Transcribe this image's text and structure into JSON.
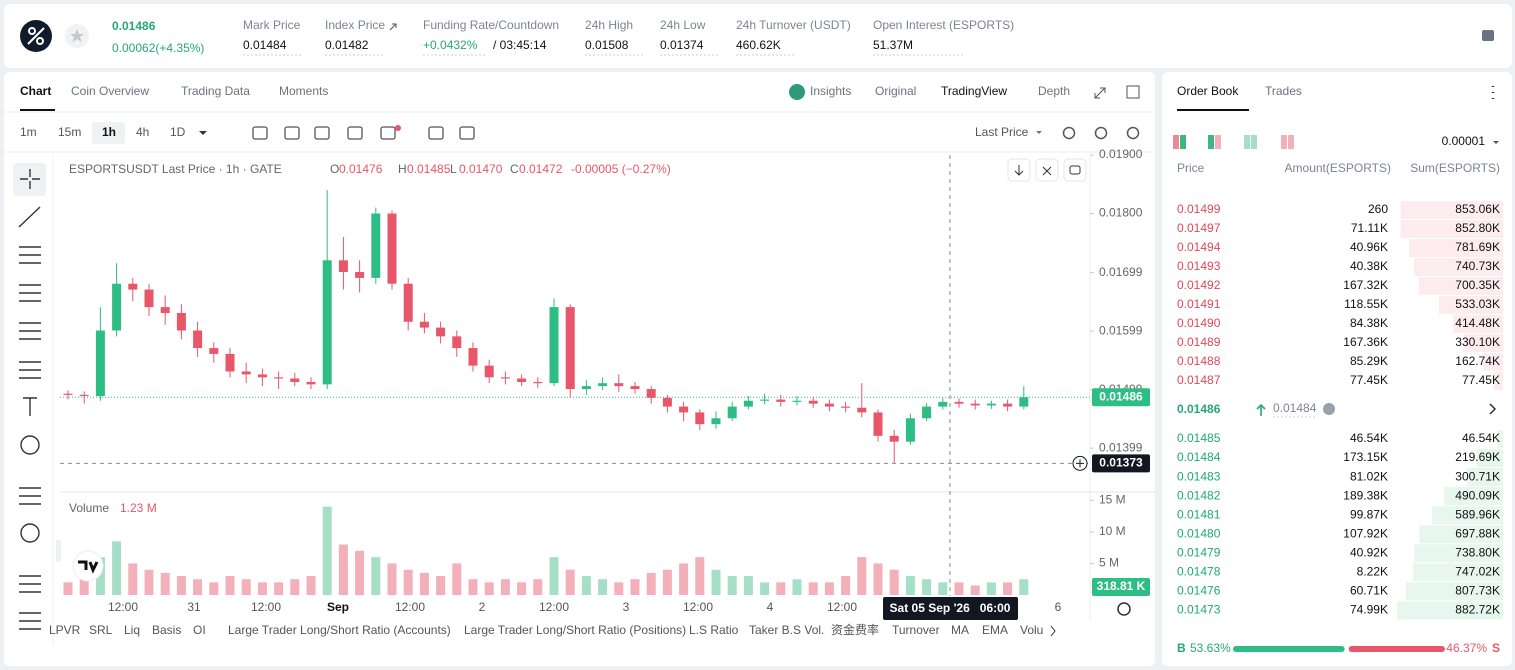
{
  "header": {
    "price": "0.01486",
    "change": "0.00062(+4.35%)",
    "stats": [
      {
        "label": "Mark Price",
        "value": "0.01484"
      },
      {
        "label": "Index Price",
        "value": "0.01482"
      },
      {
        "label": "Funding Rate/Countdown",
        "value": "+0.0432%",
        "extra": "/ 03:45:14"
      },
      {
        "label": "24h High",
        "value": "0.01508"
      },
      {
        "label": "24h Low",
        "value": "0.01374"
      },
      {
        "label": "24h Turnover (USDT)",
        "value": "460.62K"
      },
      {
        "label": "Open Interest (ESPORTS)",
        "value": "51.37M"
      }
    ]
  },
  "tabs": [
    "Chart",
    "Coin Overview",
    "Trading Data",
    "Moments"
  ],
  "view_tabs": [
    "Insights",
    "Original",
    "TradingView",
    "Depth"
  ],
  "intervals": [
    "1m",
    "15m",
    "1h",
    "4h",
    "1D"
  ],
  "price_source": "Last Price",
  "chart_data": {
    "type": "candlestick",
    "title": "ESPORTSUSDT Last Price · 1h · GATE",
    "ohlc_legend": [
      {
        "key": "O",
        "value": "0.01476"
      },
      {
        "key": "H",
        "value": "0.01485"
      },
      {
        "key": "L",
        "value": "0.01470"
      },
      {
        "key": "C",
        "value": "0.01472"
      }
    ],
    "legend_change": "-0.00005 (−0.27%)",
    "up_color": "#2ebd85",
    "down_color": "#e8566a",
    "open": [
      0.01492,
      0.0149,
      0.01488,
      0.016,
      0.0168,
      0.0167,
      0.0164,
      0.0163,
      0.016,
      0.0157,
      0.0156,
      0.0153,
      0.01525,
      0.0152,
      0.01518,
      0.01512,
      0.01508,
      0.0172,
      0.017,
      0.0169,
      0.018,
      0.0168,
      0.01615,
      0.01605,
      0.0159,
      0.0157,
      0.0154,
      0.0152,
      0.01518,
      0.01512,
      0.0151,
      0.0164,
      0.015,
      0.01505,
      0.0151,
      0.01505,
      0.015,
      0.01485,
      0.0147,
      0.0146,
      0.0144,
      0.0145,
      0.0147,
      0.0148,
      0.01482,
      0.01478,
      0.0148,
      0.01475,
      0.0147,
      0.01468,
      0.0146,
      0.0142,
      0.0141,
      0.0145,
      0.0147,
      0.01478,
      0.01475,
      0.01472,
      0.01475,
      0.0147
    ],
    "high": [
      0.01498,
      0.01496,
      0.0164,
      0.01715,
      0.0169,
      0.0168,
      0.0166,
      0.01645,
      0.01615,
      0.0158,
      0.0157,
      0.01545,
      0.01535,
      0.0153,
      0.01528,
      0.0152,
      0.0184,
      0.0176,
      0.0172,
      0.0181,
      0.01805,
      0.0169,
      0.0163,
      0.01615,
      0.016,
      0.0158,
      0.0155,
      0.0153,
      0.01525,
      0.0152,
      0.01655,
      0.01645,
      0.01515,
      0.0152,
      0.01525,
      0.01512,
      0.01505,
      0.0149,
      0.01478,
      0.01465,
      0.01462,
      0.01478,
      0.01488,
      0.01492,
      0.0149,
      0.01488,
      0.01486,
      0.01482,
      0.01478,
      0.0151,
      0.01465,
      0.0143,
      0.01458,
      0.01476,
      0.01485,
      0.01484,
      0.01482,
      0.0148,
      0.01482,
      0.01505
    ],
    "low": [
      0.01482,
      0.01475,
      0.0148,
      0.0159,
      0.0165,
      0.01625,
      0.0161,
      0.01585,
      0.01555,
      0.01545,
      0.0152,
      0.0151,
      0.01505,
      0.015,
      0.01505,
      0.015,
      0.015,
      0.0167,
      0.01665,
      0.0168,
      0.0167,
      0.016,
      0.01595,
      0.01578,
      0.01555,
      0.0153,
      0.0151,
      0.01508,
      0.01505,
      0.01502,
      0.01505,
      0.01485,
      0.0149,
      0.01498,
      0.01495,
      0.01492,
      0.01475,
      0.0146,
      0.01445,
      0.0143,
      0.01432,
      0.01445,
      0.01465,
      0.01474,
      0.0147,
      0.01472,
      0.01468,
      0.01462,
      0.0146,
      0.01452,
      0.0141,
      0.01373,
      0.01405,
      0.01445,
      0.01465,
      0.01468,
      0.01465,
      0.01466,
      0.01462,
      0.01465
    ],
    "close": [
      0.0149,
      0.01488,
      0.016,
      0.0168,
      0.0167,
      0.0164,
      0.0163,
      0.016,
      0.0157,
      0.0156,
      0.0153,
      0.01525,
      0.0152,
      0.01518,
      0.01512,
      0.01508,
      0.0172,
      0.017,
      0.0169,
      0.018,
      0.0168,
      0.01615,
      0.01605,
      0.0159,
      0.0157,
      0.0154,
      0.0152,
      0.01518,
      0.01512,
      0.0151,
      0.0164,
      0.015,
      0.01505,
      0.0151,
      0.01505,
      0.015,
      0.01485,
      0.0147,
      0.0146,
      0.0144,
      0.0145,
      0.0147,
      0.0148,
      0.01482,
      0.01478,
      0.0148,
      0.01475,
      0.0147,
      0.01468,
      0.0146,
      0.0142,
      0.0141,
      0.0145,
      0.0147,
      0.01478,
      0.01475,
      0.01472,
      0.01475,
      0.0147,
      0.01486
    ],
    "ylim": [
      0.01324,
      0.019
    ],
    "yticks": [
      {
        "value": 0.019,
        "label": "0.01900"
      },
      {
        "value": 0.018,
        "label": "0.01800"
      },
      {
        "value": 0.01699,
        "label": "0.01699"
      },
      {
        "value": 0.01599,
        "label": "0.01599"
      },
      {
        "value": 0.01499,
        "label": "0.01499"
      },
      {
        "value": 0.01399,
        "label": "0.01399"
      }
    ],
    "last_price": {
      "value": 0.01486,
      "label": "0.01486"
    },
    "crosshair_price": {
      "value": 0.01373,
      "label": "0.01373"
    },
    "crosshair_time": "Sat 05 Sep '26   06:00",
    "x_labels": [
      "12:00",
      "31",
      "12:00",
      "Sep",
      "12:00",
      "2",
      "12:00",
      "3",
      "12:00",
      "4",
      "12:00",
      "6"
    ],
    "volume_title": "Volume",
    "volume_value": "1.23 M",
    "volume_last": "318.81 K",
    "volume": [
      2000000,
      3000000,
      6000000,
      8500000,
      5000000,
      4000000,
      3500000,
      3000000,
      2500000,
      2000000,
      3000000,
      2500000,
      2000000,
      2000000,
      2500000,
      3000000,
      14000000,
      8000000,
      7000000,
      6000000,
      5000000,
      4000000,
      3500000,
      3000000,
      5000000,
      2500000,
      2000000,
      2500000,
      2000000,
      2500000,
      6000000,
      4000000,
      3000000,
      2500000,
      2000000,
      2500000,
      3500000,
      4000000,
      5000000,
      6000000,
      4000000,
      3000000,
      3000000,
      2000000,
      2000000,
      2500000,
      2000000,
      2000000,
      3000000,
      6000000,
      5000000,
      4000000,
      3000000,
      2500000,
      2000000,
      2000000,
      1500000,
      2000000,
      2000000,
      2500000
    ],
    "volume_ylim": [
      0,
      16000000
    ],
    "volume_ticks": [
      {
        "value": 15000000,
        "label": "15 M"
      },
      {
        "value": 10000000,
        "label": "10 M"
      },
      {
        "value": 5000000,
        "label": "5 M"
      }
    ]
  },
  "indicators": [
    "LPVR",
    "SRL",
    "Liq",
    "Basis",
    "OI",
    "Large Trader Long/Short Ratio (Accounts)",
    "Large Trader Long/Short Ratio (Positions)",
    "L.S Ratio",
    "Taker B.S Vol.",
    "资金费率",
    "Turnover",
    "MA",
    "EMA",
    "Volu"
  ],
  "order_book": {
    "tabs": [
      "Order Book",
      "Trades"
    ],
    "precision": "0.00001",
    "headers": [
      "Price",
      "Amount(ESPORTS)",
      "Sum(ESPORTS)"
    ],
    "asks": [
      {
        "price": "0.01499",
        "amount": "260",
        "sum": 853060,
        "sum_label": "853.06K"
      },
      {
        "price": "0.01497",
        "amount": "71.11K",
        "sum": 852800,
        "sum_label": "852.80K"
      },
      {
        "price": "0.01494",
        "amount": "40.96K",
        "sum": 781690,
        "sum_label": "781.69K"
      },
      {
        "price": "0.01493",
        "amount": "40.38K",
        "sum": 740730,
        "sum_label": "740.73K"
      },
      {
        "price": "0.01492",
        "amount": "167.32K",
        "sum": 700350,
        "sum_label": "700.35K"
      },
      {
        "price": "0.01491",
        "amount": "118.55K",
        "sum": 533030,
        "sum_label": "533.03K"
      },
      {
        "price": "0.01490",
        "amount": "84.38K",
        "sum": 414480,
        "sum_label": "414.48K"
      },
      {
        "price": "0.01489",
        "amount": "167.36K",
        "sum": 330100,
        "sum_label": "330.10K"
      },
      {
        "price": "0.01488",
        "amount": "85.29K",
        "sum": 162740,
        "sum_label": "162.74K"
      },
      {
        "price": "0.01487",
        "amount": "77.45K",
        "sum": 77450,
        "sum_label": "77.45K"
      }
    ],
    "mid_price": "0.01486",
    "mid_mark": "0.01484",
    "bids": [
      {
        "price": "0.01485",
        "amount": "46.54K",
        "sum": 46540,
        "sum_label": "46.54K"
      },
      {
        "price": "0.01484",
        "amount": "173.15K",
        "sum": 219690,
        "sum_label": "219.69K"
      },
      {
        "price": "0.01483",
        "amount": "81.02K",
        "sum": 300710,
        "sum_label": "300.71K"
      },
      {
        "price": "0.01482",
        "amount": "189.38K",
        "sum": 490090,
        "sum_label": "490.09K"
      },
      {
        "price": "0.01481",
        "amount": "99.87K",
        "sum": 589960,
        "sum_label": "589.96K"
      },
      {
        "price": "0.01480",
        "amount": "107.92K",
        "sum": 697880,
        "sum_label": "697.88K"
      },
      {
        "price": "0.01479",
        "amount": "40.92K",
        "sum": 738800,
        "sum_label": "738.80K"
      },
      {
        "price": "0.01478",
        "amount": "8.22K",
        "sum": 747020,
        "sum_label": "747.02K"
      },
      {
        "price": "0.01476",
        "amount": "60.71K",
        "sum": 807730,
        "sum_label": "807.73K"
      },
      {
        "price": "0.01473",
        "amount": "74.99K",
        "sum": 882720,
        "sum_label": "882.72K"
      }
    ],
    "ratio": {
      "buy_key": "B",
      "sell_key": "S",
      "buy": 53.63,
      "sell": 46.37,
      "buy_label": "53.63%",
      "sell_label": "46.37%"
    }
  }
}
